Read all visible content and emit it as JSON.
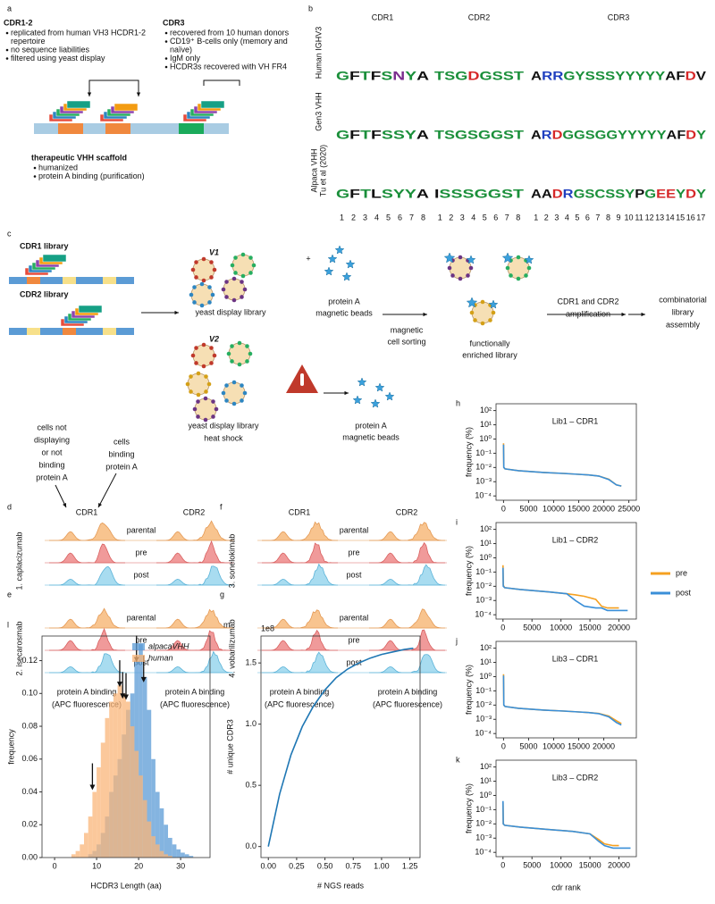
{
  "panel_a": {
    "label": "a",
    "cdr12": {
      "title": "CDR1-2",
      "items": [
        [
          "replicated from human VH3 HCDR1-2",
          "repertoire"
        ],
        [
          "no sequence liabilities"
        ],
        [
          "filtered using yeast display"
        ]
      ]
    },
    "cdr3": {
      "title": "CDR3",
      "items": [
        [
          "recovered from 10 human donors"
        ],
        [
          "CD19⁺ B-cells only (memory and",
          "naïve)"
        ],
        [
          "IgM only"
        ],
        [
          "HCDR3s recovered with VH FR4"
        ]
      ]
    },
    "scaffold": {
      "title": "therapeutic VHH scaffold",
      "items": [
        [
          "humanized"
        ],
        [
          "protein A binding (purification)"
        ]
      ]
    }
  },
  "panel_b": {
    "label": "b",
    "columns": [
      "CDR1",
      "CDR2",
      "CDR3"
    ],
    "rows": [
      {
        "name": [
          "Human IGHV3"
        ],
        "logos": [
          "GFTFSNYA",
          "TSGDGSST",
          "ARRGYSSSYYYYYAFDV"
        ]
      },
      {
        "name": [
          "Gen3 VHH"
        ],
        "logos": [
          "GFTFSSYA",
          "TSGSGGST",
          "ARDGGSGGYYYYYAFDY"
        ]
      },
      {
        "name": [
          "Alpaca VHH",
          "Tu et al (2020)"
        ],
        "logos": [
          "GFTLSYYA",
          "ISSSGGST",
          "AADRGSCSSYPGEEYDY"
        ]
      }
    ],
    "positions": [
      [
        1,
        2,
        3,
        4,
        5,
        6,
        7,
        8
      ],
      [
        1,
        2,
        3,
        4,
        5,
        6,
        7,
        8
      ],
      [
        1,
        2,
        3,
        4,
        5,
        6,
        7,
        8,
        9,
        10,
        11,
        12,
        13,
        14,
        15,
        16,
        17
      ]
    ]
  },
  "panel_c": {
    "label": "c",
    "cdr1_library": "CDR1 library",
    "cdr2_library": "CDR2 library",
    "v1": "V1",
    "v2": "V2",
    "plus": "+",
    "yeast_v1": "yeast display library",
    "beads_v1": [
      "protein A",
      "magnetic beads"
    ],
    "yeast_v2": [
      "yeast display library",
      "heat shock"
    ],
    "beads_v2": [
      "protein A",
      "magnetic beads"
    ],
    "sorting": [
      "magnetic",
      "cell sorting"
    ],
    "enriched": [
      "functionally",
      "enriched library"
    ],
    "amplification": [
      "CDR1 and CDR2",
      "amplification"
    ],
    "assembly": [
      "combinatorial",
      "library",
      "assembly"
    ]
  },
  "panels_dg": {
    "annotation_left": [
      "cells not",
      "displaying",
      "or not",
      "binding",
      "protein A"
    ],
    "annotation_right": [
      "cells",
      "binding",
      "protein A"
    ],
    "panels": [
      {
        "label": "d",
        "antibody": "1. caplacizumab"
      },
      {
        "label": "e",
        "antibody": "2. isecarosmab"
      },
      {
        "label": "f",
        "antibody": "3. sonelokimab"
      },
      {
        "label": "g",
        "antibody": "4. vobarilizumab"
      }
    ],
    "columns": [
      "CDR1",
      "CDR2"
    ],
    "rows": [
      "parental",
      "pre",
      "post"
    ],
    "x_label": [
      "protein A binding",
      "(APC fluorescence)"
    ]
  },
  "chart_data": [
    {
      "type": "line",
      "label": "h",
      "title": "Lib1 – CDR1",
      "y_label": "frequency (%)",
      "log_y": true,
      "x": [
        1,
        50,
        300,
        3000,
        8000,
        12000,
        15000,
        17000,
        19000,
        21000,
        22500,
        23500
      ],
      "series": [
        {
          "color": "#f5a020",
          "values": [
            0.5,
            0.01,
            0.008,
            0.006,
            0.0045,
            0.0038,
            0.0033,
            0.003,
            0.0025,
            0.0015,
            0.0006,
            0.0005
          ]
        },
        {
          "color": "#3a8fd8",
          "values": [
            0.4,
            0.01,
            0.008,
            0.006,
            0.0045,
            0.0038,
            0.0033,
            0.003,
            0.0025,
            0.0014,
            0.0006,
            0.0005
          ]
        }
      ],
      "xlim": [
        -1500,
        26500
      ],
      "xticks": [
        0,
        5000,
        10000,
        15000,
        20000,
        25000
      ],
      "ylim": [
        5e-05,
        300
      ],
      "yticks": [
        {
          "value": 100,
          "label": "10²"
        },
        {
          "value": 10,
          "label": "10¹"
        },
        {
          "value": 1,
          "label": "10⁰"
        },
        {
          "value": 0.1,
          "label": "10⁻¹"
        },
        {
          "value": 0.01,
          "label": "10⁻²"
        },
        {
          "value": 0.001,
          "label": "10⁻³"
        },
        {
          "value": 0.0001,
          "label": "10⁻⁴"
        }
      ]
    },
    {
      "type": "line",
      "label": "i",
      "title": "Lib1 – CDR2",
      "y_label": "frequency (%)",
      "log_y": true,
      "x": [
        1,
        50,
        300,
        3000,
        8000,
        11000,
        12500,
        14000,
        16000,
        17000,
        18000,
        20000,
        21500
      ],
      "series": [
        {
          "name": "pre",
          "color": "#f5a020",
          "values": [
            0.3,
            0.012,
            0.008,
            0.006,
            0.004,
            0.003,
            0.0025,
            0.002,
            0.0012,
            0.0004,
            0.0003,
            0.0003,
            null
          ]
        },
        {
          "name": "post",
          "color": "#3a8fd8",
          "values": [
            0.2,
            0.01,
            0.008,
            0.006,
            0.004,
            0.003,
            0.001,
            0.0004,
            0.0003,
            0.0003,
            0.0002,
            0.0002,
            0.0002
          ]
        }
      ],
      "xlim": [
        -1200,
        23000
      ],
      "xticks": [
        0,
        5000,
        10000,
        15000,
        20000
      ],
      "ylim": [
        5e-05,
        300
      ],
      "yticks": [
        {
          "value": 100,
          "label": "10²"
        },
        {
          "value": 10,
          "label": "10¹"
        },
        {
          "value": 1,
          "label": "10⁰"
        },
        {
          "value": 0.1,
          "label": "10⁻¹"
        },
        {
          "value": 0.01,
          "label": "10⁻²"
        },
        {
          "value": 0.001,
          "label": "10⁻³"
        },
        {
          "value": 0.0001,
          "label": "10⁻⁴"
        }
      ]
    },
    {
      "type": "line",
      "label": "j",
      "title": "Lib3 – CDR1",
      "y_label": "frequency (%)",
      "log_y": true,
      "x": [
        1,
        50,
        300,
        3000,
        8000,
        12000,
        15000,
        17000,
        19000,
        21000,
        22500,
        23500
      ],
      "series": [
        {
          "color": "#f5a020",
          "values": [
            1.5,
            0.01,
            0.008,
            0.006,
            0.0045,
            0.0038,
            0.0033,
            0.003,
            0.0026,
            0.0017,
            0.0008,
            0.0005
          ]
        },
        {
          "color": "#3a8fd8",
          "values": [
            1.2,
            0.01,
            0.008,
            0.006,
            0.0045,
            0.0038,
            0.0033,
            0.003,
            0.0025,
            0.0015,
            0.0006,
            0.0004
          ]
        }
      ],
      "xlim": [
        -1500,
        26500
      ],
      "xticks": [
        0,
        5000,
        10000,
        15000,
        20000
      ],
      "ylim": [
        5e-05,
        300
      ],
      "yticks": [
        {
          "value": 100,
          "label": "10²"
        },
        {
          "value": 10,
          "label": "10¹"
        },
        {
          "value": 1,
          "label": "10⁰"
        },
        {
          "value": 0.1,
          "label": "10⁻¹"
        },
        {
          "value": 0.01,
          "label": "10⁻²"
        },
        {
          "value": 0.001,
          "label": "10⁻³"
        },
        {
          "value": 0.0001,
          "label": "10⁻⁴"
        }
      ]
    },
    {
      "type": "line",
      "label": "k",
      "title": "Lib3 – CDR2",
      "y_label": "frequency (%)",
      "x_label": "cdr rank",
      "log_y": true,
      "x": [
        1,
        50,
        300,
        3000,
        8000,
        12000,
        15000,
        16500,
        17500,
        19000,
        20000,
        22000
      ],
      "series": [
        {
          "color": "#f5a020",
          "values": [
            0.3,
            0.01,
            0.008,
            0.006,
            0.004,
            0.003,
            0.002,
            0.0008,
            0.0004,
            0.0003,
            0.0003,
            null
          ]
        },
        {
          "color": "#3a8fd8",
          "values": [
            0.4,
            0.01,
            0.008,
            0.006,
            0.004,
            0.003,
            0.002,
            0.0006,
            0.0003,
            0.0002,
            0.0002,
            0.0002
          ]
        }
      ],
      "xlim": [
        -1200,
        23000
      ],
      "xticks": [
        0,
        5000,
        10000,
        15000,
        20000
      ],
      "ylim": [
        5e-05,
        300
      ],
      "yticks": [
        {
          "value": 100,
          "label": "10²"
        },
        {
          "value": 10,
          "label": "10¹"
        },
        {
          "value": 1,
          "label": "10⁰"
        },
        {
          "value": 0.1,
          "label": "10⁻¹"
        },
        {
          "value": 0.01,
          "label": "10⁻²"
        },
        {
          "value": 0.001,
          "label": "10⁻³"
        },
        {
          "value": 0.0001,
          "label": "10⁻⁴"
        }
      ]
    },
    {
      "type": "histogram",
      "label": "l",
      "x_label": "HCDR3 Length (aa)",
      "y_label": "frequency",
      "bins": [
        4,
        5,
        6,
        7,
        8,
        9,
        10,
        11,
        12,
        13,
        14,
        15,
        16,
        17,
        18,
        19,
        20,
        21,
        22,
        23,
        24,
        25,
        26,
        27,
        28,
        29,
        30,
        31,
        32,
        33,
        34
      ],
      "series": [
        {
          "name": "alpacaVHH",
          "color": "#5b9bd5",
          "values": [
            0,
            0,
            0,
            0,
            0.002,
            0.004,
            0.008,
            0.015,
            0.025,
            0.04,
            0.05,
            0.06,
            0.075,
            0.09,
            0.1,
            0.12,
            0.13,
            0.11,
            0.09,
            0.06,
            0.04,
            0.03,
            0.02,
            0.012,
            0.008,
            0.005,
            0.003,
            0.002,
            0.001,
            0
          ]
        },
        {
          "name": "human",
          "color": "#f9b57a",
          "values": [
            0.002,
            0.004,
            0.008,
            0.015,
            0.025,
            0.04,
            0.055,
            0.07,
            0.085,
            0.095,
            0.1,
            0.105,
            0.1,
            0.095,
            0.08,
            0.065,
            0.05,
            0.035,
            0.022,
            0.013,
            0.008,
            0.004,
            0.002,
            0.001,
            0,
            0,
            0,
            0,
            0,
            0
          ]
        }
      ],
      "arrows": [
        9,
        15.5,
        16.2,
        17,
        19.5,
        21.2
      ],
      "xlim": [
        -3,
        37
      ],
      "xticks": [
        0,
        10,
        20,
        30
      ],
      "ylim": [
        0,
        0.135
      ],
      "yticks": [
        {
          "value": 0,
          "label": "0.00"
        },
        {
          "value": 0.02,
          "label": "0.02"
        },
        {
          "value": 0.04,
          "label": "0.04"
        },
        {
          "value": 0.06,
          "label": "0.06"
        },
        {
          "value": 0.08,
          "label": "0.08"
        },
        {
          "value": 0.1,
          "label": "0.10"
        },
        {
          "value": 0.12,
          "label": "0.12"
        }
      ]
    },
    {
      "type": "line",
      "label": "m",
      "x_label": "# NGS reads",
      "y_label": "# unique CDR3",
      "y_offset_label": "1e8",
      "x": [
        0,
        0.1,
        0.2,
        0.3,
        0.4,
        0.5,
        0.6,
        0.7,
        0.8,
        0.9,
        1.0,
        1.1,
        1.2,
        1.28
      ],
      "series": [
        {
          "color": "#1f77b4",
          "values": [
            0,
            0.43,
            0.75,
            0.98,
            1.15,
            1.28,
            1.38,
            1.45,
            1.5,
            1.54,
            1.57,
            1.59,
            1.61,
            1.62
          ]
        }
      ],
      "xlim": [
        -0.065,
        1.34
      ],
      "xticks": [
        {
          "value": 0,
          "label": "0.00"
        },
        {
          "value": 0.25,
          "label": "0.25"
        },
        {
          "value": 0.5,
          "label": "0.50"
        },
        {
          "value": 0.75,
          "label": "0.75"
        },
        {
          "value": 1,
          "label": "1.00"
        },
        {
          "value": 1.25,
          "label": "1.25"
        }
      ],
      "ylim": [
        -0.09,
        1.72
      ],
      "yticks": [
        {
          "value": 0,
          "label": "0.0"
        },
        {
          "value": 0.5,
          "label": "0.5"
        },
        {
          "value": 1,
          "label": "1.0"
        },
        {
          "value": 1.5,
          "label": "1.5"
        }
      ]
    }
  ]
}
